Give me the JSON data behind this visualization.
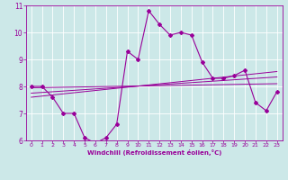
{
  "xlabel": "Windchill (Refroidissement éolien,°C)",
  "bg_color": "#cce8e8",
  "line_color": "#990099",
  "xlim": [
    -0.5,
    23.5
  ],
  "ylim": [
    6,
    11
  ],
  "xticks": [
    0,
    1,
    2,
    3,
    4,
    5,
    6,
    7,
    8,
    9,
    10,
    11,
    12,
    13,
    14,
    15,
    16,
    17,
    18,
    19,
    20,
    21,
    22,
    23
  ],
  "yticks": [
    6,
    7,
    8,
    9,
    10,
    11
  ],
  "main_line_x": [
    0,
    1,
    2,
    3,
    4,
    5,
    6,
    7,
    8,
    9,
    10,
    11,
    12,
    13,
    14,
    15,
    16,
    17,
    18,
    19,
    20,
    21,
    22,
    23
  ],
  "main_line_y": [
    8.0,
    8.0,
    7.6,
    7.0,
    7.0,
    6.1,
    5.9,
    6.1,
    6.6,
    9.3,
    9.0,
    10.8,
    10.3,
    9.9,
    10.0,
    9.9,
    8.9,
    8.3,
    8.3,
    8.4,
    8.6,
    7.4,
    7.1,
    7.8
  ],
  "trend1_x": [
    0,
    23
  ],
  "trend1_y": [
    7.95,
    8.1
  ],
  "trend2_x": [
    0,
    23
  ],
  "trend2_y": [
    7.75,
    8.35
  ],
  "trend3_x": [
    0,
    23
  ],
  "trend3_y": [
    7.6,
    8.55
  ]
}
